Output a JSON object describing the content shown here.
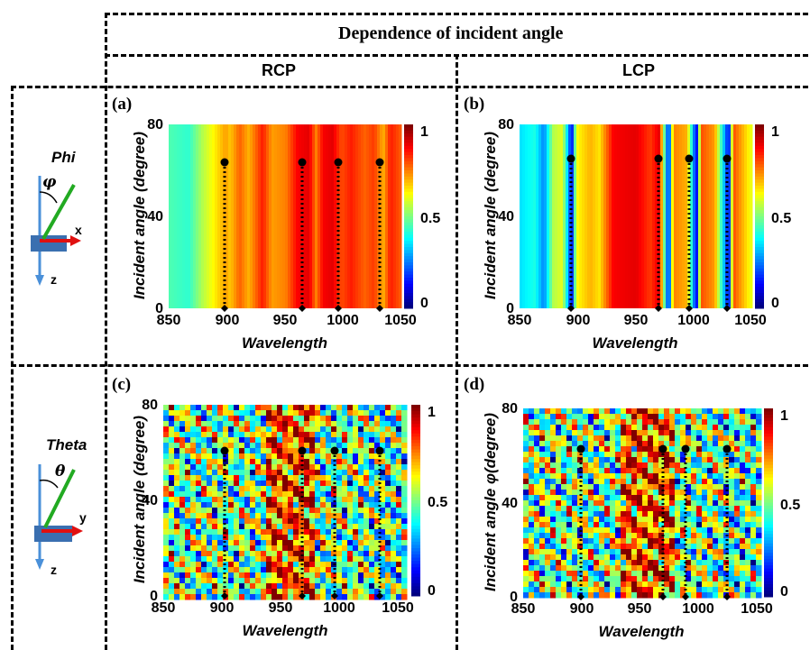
{
  "header": {
    "title": "Dependence of incident angle",
    "col_rcp": "RCP",
    "col_lcp": "LCP"
  },
  "rows": [
    {
      "label": "Phi",
      "angle_symbol": "φ",
      "axis_label": "x"
    },
    {
      "label": "Theta",
      "angle_symbol": "θ",
      "axis_label": "y"
    }
  ],
  "z_label": "z",
  "panels": [
    {
      "tag": "(a)",
      "ylabel": "Incident angle (degree)",
      "xlabel": "Wavelength",
      "xticks": [
        "850",
        "900",
        "950",
        "1000",
        "1050"
      ],
      "yticks": [
        "80",
        "40",
        "0"
      ],
      "cbticks": [
        "1",
        "0.5",
        "0"
      ]
    },
    {
      "tag": "(b)",
      "ylabel": "Incident angle (degree)",
      "xlabel": "Wavelength",
      "xticks": [
        "850",
        "900",
        "950",
        "1000",
        "1050"
      ],
      "yticks": [
        "80",
        "40",
        "0"
      ],
      "cbticks": [
        "1",
        "0.5",
        "0"
      ]
    },
    {
      "tag": "(c)",
      "ylabel": "Incident angle (degree)",
      "xlabel": "Wavelength",
      "xticks": [
        "850",
        "900",
        "950",
        "1000",
        "1050"
      ],
      "yticks": [
        "80",
        "40",
        "0"
      ],
      "cbticks": [
        "1",
        "0.5",
        "0"
      ]
    },
    {
      "tag": "(d)",
      "ylabel": "Incident angle φ(degree)",
      "xlabel": "Wavelength",
      "xticks": [
        "850",
        "900",
        "950",
        "1000",
        "1050"
      ],
      "yticks": [
        "80",
        "40",
        "0"
      ],
      "cbticks": [
        "1",
        "0.5",
        "0"
      ]
    }
  ],
  "colors": {
    "arrow_green": "#22aa22",
    "arrow_red": "#e01010",
    "arrow_blue": "#4a90d9",
    "plate": "#3a6fb0"
  }
}
